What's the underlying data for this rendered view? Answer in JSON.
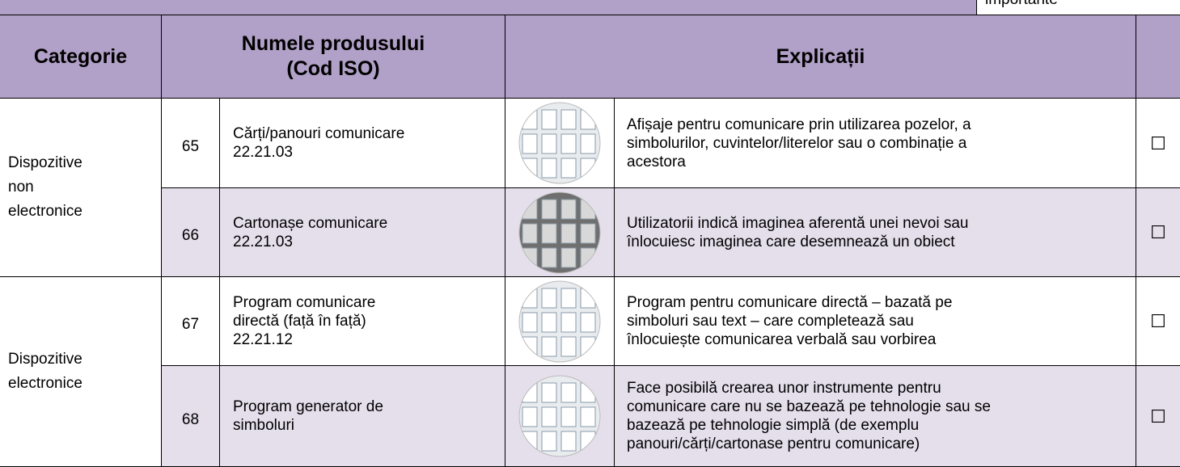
{
  "top_note": "importante",
  "header": {
    "category": "Categorie",
    "product_lines": [
      "Numele produsului",
      "(Cod ISO)"
    ],
    "explanation": "Explicații"
  },
  "groups": [
    {
      "category_lines": [
        "Dispozitive",
        "non",
        "electronice"
      ],
      "items": [
        {
          "number": 65,
          "name_lines": [
            "Cărți/panouri comunicare",
            "22.21.03"
          ],
          "explanation_lines": [
            "Afișaje pentru comunicare prin utilizarea pozelor, a",
            "simbolurilor, cuvintelor/literelor sau o combinație a",
            "acestora"
          ],
          "checkbox": "☐"
        },
        {
          "number": 66,
          "name_lines": [
            "Cartonașe comunicare",
            "22.21.03"
          ],
          "explanation_lines": [
            "Utilizatorii indică imaginea aferentă unei nevoi sau",
            "înlocuiesc imaginea care desemnează un obiect"
          ],
          "checkbox": "☐"
        }
      ]
    },
    {
      "category_lines": [
        "Dispozitive",
        "electronice"
      ],
      "items": [
        {
          "number": 67,
          "name_lines": [
            "Program comunicare",
            "directă (față în față)",
            "22.21.12"
          ],
          "explanation_lines": [
            "Program pentru comunicare directă – bazată pe",
            "simboluri sau text – care completează sau",
            "înlocuiește comunicarea verbală sau vorbirea"
          ],
          "checkbox": "☐"
        },
        {
          "number": 68,
          "name_lines": [
            "Program generator de",
            "simboluri"
          ],
          "explanation_lines": [
            "Face posibilă crearea unor instrumente pentru",
            "comunicare care nu se bazează pe tehnologie sau se",
            "bazează pe tehnologie simplă (de exemplu",
            "panouri/cărți/cartonase pentru comunicare)"
          ],
          "checkbox": "☐"
        }
      ]
    }
  ]
}
